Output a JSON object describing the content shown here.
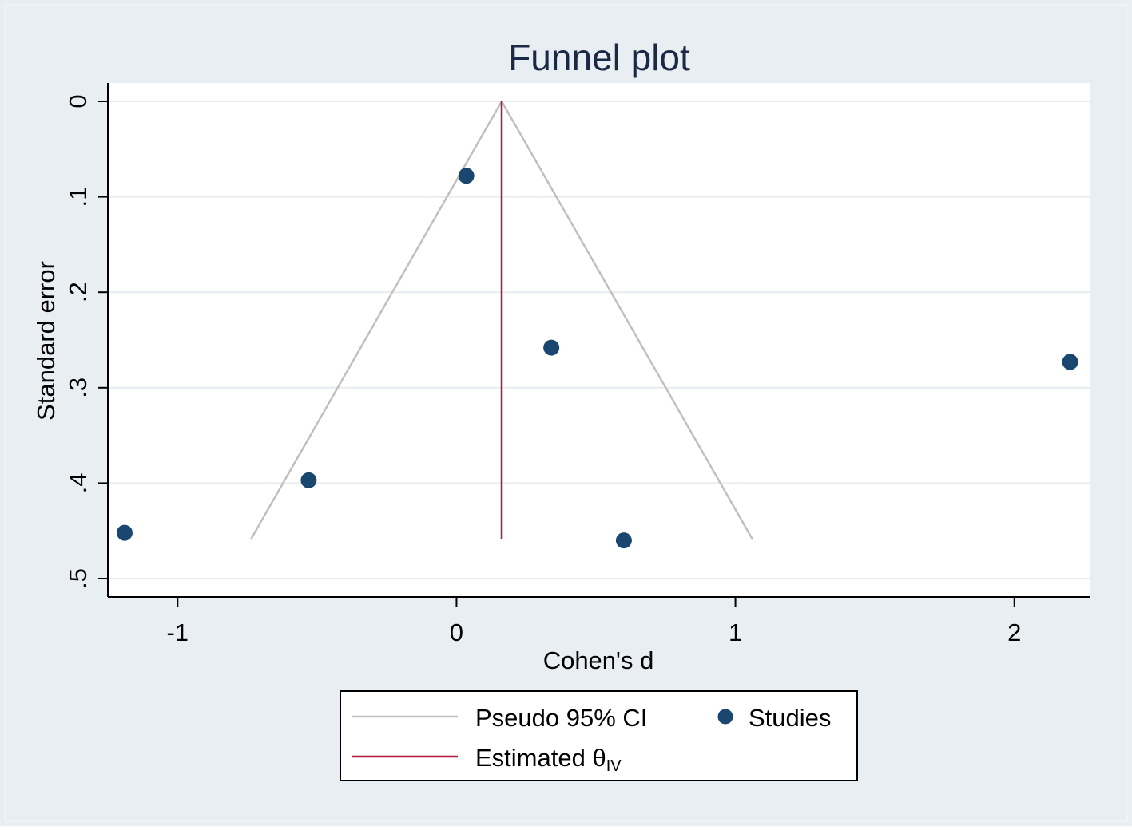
{
  "chart_data": {
    "type": "scatter",
    "title": "Funnel plot",
    "xlabel": "Cohen's d",
    "ylabel": "Standard error",
    "xlim": [
      -1.25,
      2.27
    ],
    "ylim": [
      0,
      0.518
    ],
    "y_reversed": true,
    "x_ticks": [
      -1,
      0,
      1,
      2
    ],
    "x_tick_labels": [
      "-1",
      "0",
      "1",
      "2"
    ],
    "y_ticks": [
      0,
      0.1,
      0.2,
      0.3,
      0.4,
      0.5
    ],
    "y_tick_labels": [
      "0",
      ".1",
      ".2",
      ".3",
      ".4",
      ".5"
    ],
    "grid": true,
    "legend_position": "bottom",
    "estimate": 0.162,
    "funnel_se_max": 0.459,
    "series": [
      {
        "name": "Studies",
        "color": "#1a476f",
        "points": [
          {
            "x": 0.035,
            "y": 0.078
          },
          {
            "x": 0.34,
            "y": 0.258
          },
          {
            "x": 2.2,
            "y": 0.273
          },
          {
            "x": -0.53,
            "y": 0.397
          },
          {
            "x": -1.19,
            "y": 0.452
          },
          {
            "x": 0.6,
            "y": 0.46
          }
        ]
      }
    ],
    "legend": [
      {
        "label": "Pseudo 95% CI",
        "kind": "line",
        "color": "#c0c0c0"
      },
      {
        "label": "Studies",
        "kind": "marker",
        "color": "#1a476f"
      },
      {
        "label": "Estimated θ",
        "subscript": "IV",
        "kind": "line",
        "color": "#b5163e"
      }
    ],
    "colors": {
      "background": "#e9eef3",
      "plot_background": "#ffffff",
      "grid": "#e6ecf0",
      "axis": "#000000",
      "title": "#1a2a44",
      "funnel": "#c0c0c0",
      "estimate_line": "#b5163e",
      "marker": "#1a476f"
    }
  }
}
